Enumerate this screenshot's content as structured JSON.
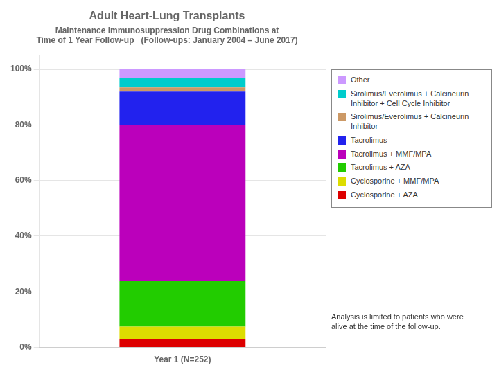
{
  "chart_data": {
    "type": "bar",
    "title": "Adult Heart-Lung Transplants",
    "subtitle": [
      "Maintenance Immunosuppression Drug Combinations at",
      "Time of 1 Year Follow-up   (Follow-ups: January 2004 – June 2017)"
    ],
    "categories": [
      "Year 1 (N=252)"
    ],
    "series": [
      {
        "name": "Cyclosporine + AZA",
        "color": "#DD0000",
        "values": [
          3.0
        ]
      },
      {
        "name": "Cyclosporine + MMF/MPA",
        "color": "#DDDD00",
        "values": [
          4.5
        ]
      },
      {
        "name": "Tacrolimus + AZA",
        "color": "#22CC00",
        "values": [
          16.5
        ]
      },
      {
        "name": "Tacrolimus + MMF/MPA",
        "color": "#BB00BB",
        "values": [
          56.0
        ]
      },
      {
        "name": "Tacrolimus",
        "color": "#2222EE",
        "values": [
          12.0
        ]
      },
      {
        "name": "Sirolimus/Everolimus + Calcineurin\nInhibitor",
        "color": "#CC9966",
        "values": [
          1.5
        ]
      },
      {
        "name": "Sirolimus/Everolimus + Calcineurin\nInhibitor + Cell Cycle Inhibitor",
        "color": "#00CCCC",
        "values": [
          3.5
        ]
      },
      {
        "name": "Other",
        "color": "#CC99FF",
        "values": [
          3.0
        ]
      }
    ],
    "stacked": true,
    "ylim": [
      0,
      105
    ],
    "yticks": [
      {
        "value": 0,
        "label": "0%"
      },
      {
        "value": 20,
        "label": "20%"
      },
      {
        "value": 40,
        "label": "40%"
      },
      {
        "value": 60,
        "label": "60%"
      },
      {
        "value": 80,
        "label": "80%"
      },
      {
        "value": 100,
        "label": "100%"
      }
    ],
    "grid": true,
    "legend": "right",
    "annotations": [
      "Analysis is limited to patients who were\nalive at the time of the follow-up."
    ]
  }
}
